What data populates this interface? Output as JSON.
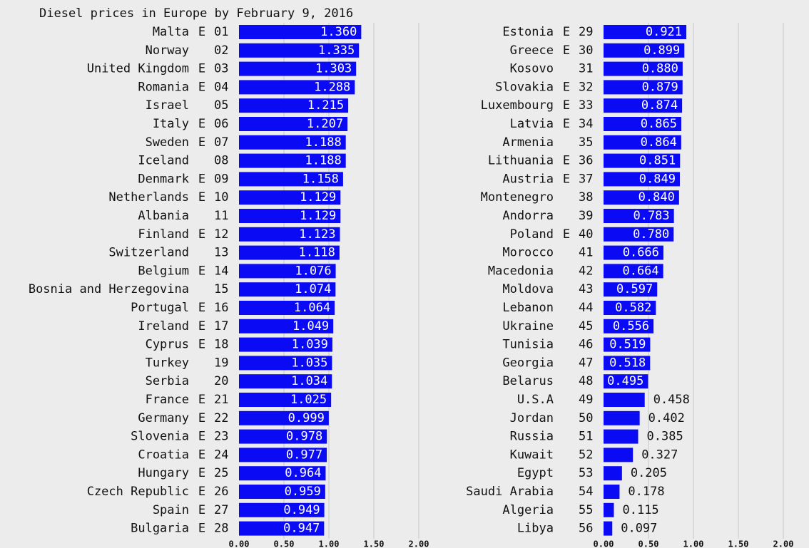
{
  "chart_data": [
    {
      "type": "bar",
      "orientation": "horizontal",
      "title": "Diesel prices in Europe by February 9, 2016",
      "color": "#0a0af5",
      "grid": true,
      "categories": [
        "Malta",
        "Norway",
        "United Kingdom",
        "Romania",
        "Israel",
        "Italy",
        "Sweden",
        "Iceland",
        "Denmark",
        "Netherlands",
        "Albania",
        "Finland",
        "Switzerland",
        "Belgium",
        "Bosnia and Herzegovina",
        "Portugal",
        "Ireland",
        "Cyprus",
        "Turkey",
        "Serbia",
        "France",
        "Germany",
        "Slovenia",
        "Croatia",
        "Hungary",
        "Czech Republic",
        "Spain",
        "Bulgaria"
      ],
      "eu": [
        "E",
        null,
        "E",
        "E",
        null,
        "E",
        "E",
        null,
        "E",
        "E",
        null,
        "E",
        null,
        "E",
        null,
        "E",
        "E",
        "E",
        null,
        null,
        "E",
        "E",
        "E",
        "E",
        "E",
        "E",
        "E",
        "E"
      ],
      "ranks": [
        "01",
        "02",
        "03",
        "04",
        "05",
        "06",
        "07",
        "08",
        "09",
        "10",
        "11",
        "12",
        "13",
        "14",
        "15",
        "16",
        "17",
        "18",
        "19",
        "20",
        "21",
        "22",
        "23",
        "24",
        "25",
        "26",
        "27",
        "28"
      ],
      "values": [
        1.36,
        1.335,
        1.303,
        1.288,
        1.215,
        1.207,
        1.188,
        1.188,
        1.158,
        1.129,
        1.129,
        1.123,
        1.118,
        1.076,
        1.074,
        1.064,
        1.049,
        1.039,
        1.035,
        1.034,
        1.025,
        0.999,
        0.978,
        0.977,
        0.964,
        0.959,
        0.949,
        0.947
      ],
      "value_labels": [
        "1.360",
        "1.335",
        "1.303",
        "1.288",
        "1.215",
        "1.207",
        "1.188",
        "1.188",
        "1.158",
        "1.129",
        "1.129",
        "1.123",
        "1.118",
        "1.076",
        "1.074",
        "1.064",
        "1.049",
        "1.039",
        "1.035",
        "1.034",
        "1.025",
        "0.999",
        "0.978",
        "0.977",
        "0.964",
        "0.959",
        "0.949",
        "0.947"
      ],
      "xlim": [
        0,
        2
      ],
      "xticks": [
        {
          "value": 0,
          "label": "0.00"
        },
        {
          "value": 0.5,
          "label": "0.50"
        },
        {
          "value": 1,
          "label": "1.00"
        },
        {
          "value": 1.5,
          "label": "1.50"
        },
        {
          "value": 2,
          "label": "2.00"
        }
      ]
    },
    {
      "type": "bar",
      "orientation": "horizontal",
      "color": "#0a0af5",
      "grid": true,
      "categories": [
        "Estonia",
        "Greece",
        "Kosovo",
        "Slovakia",
        "Luxembourg",
        "Latvia",
        "Armenia",
        "Lithuania",
        "Austria",
        "Montenegro",
        "Andorra",
        "Poland",
        "Morocco",
        "Macedonia",
        "Moldova",
        "Lebanon",
        "Ukraine",
        "Tunisia",
        "Georgia",
        "Belarus",
        "U.S.A",
        "Jordan",
        "Russia",
        "Kuwait",
        "Egypt",
        "Saudi Arabia",
        "Algeria",
        "Libya"
      ],
      "eu": [
        "E",
        "E",
        null,
        "E",
        "E",
        "E",
        null,
        "E",
        "E",
        null,
        null,
        "E",
        null,
        null,
        null,
        null,
        null,
        null,
        null,
        null,
        null,
        null,
        null,
        null,
        null,
        null,
        null,
        null
      ],
      "ranks": [
        "29",
        "30",
        "31",
        "32",
        "33",
        "34",
        "35",
        "36",
        "37",
        "38",
        "39",
        "40",
        "41",
        "42",
        "43",
        "44",
        "45",
        "46",
        "47",
        "48",
        "49",
        "50",
        "51",
        "52",
        "53",
        "54",
        "55",
        "56"
      ],
      "values": [
        0.921,
        0.899,
        0.88,
        0.879,
        0.874,
        0.865,
        0.864,
        0.851,
        0.849,
        0.84,
        0.783,
        0.78,
        0.666,
        0.664,
        0.597,
        0.582,
        0.556,
        0.519,
        0.518,
        0.495,
        0.458,
        0.402,
        0.385,
        0.327,
        0.205,
        0.178,
        0.115,
        0.097
      ],
      "value_labels": [
        "0.921",
        "0.899",
        "0.880",
        "0.879",
        "0.874",
        "0.865",
        "0.864",
        "0.851",
        "0.849",
        "0.840",
        "0.783",
        "0.780",
        "0.666",
        "0.664",
        "0.597",
        "0.582",
        "0.556",
        "0.519",
        "0.518",
        "0.495",
        "0.458",
        "0.402",
        "0.385",
        "0.327",
        "0.205",
        "0.178",
        "0.115",
        "0.097"
      ],
      "xlim": [
        0,
        2
      ],
      "xticks": [
        {
          "value": 0,
          "label": "0.00"
        },
        {
          "value": 0.5,
          "label": "0.50"
        },
        {
          "value": 1,
          "label": "1.00"
        },
        {
          "value": 1.5,
          "label": "1.50"
        },
        {
          "value": 2,
          "label": "2.00"
        }
      ]
    }
  ]
}
